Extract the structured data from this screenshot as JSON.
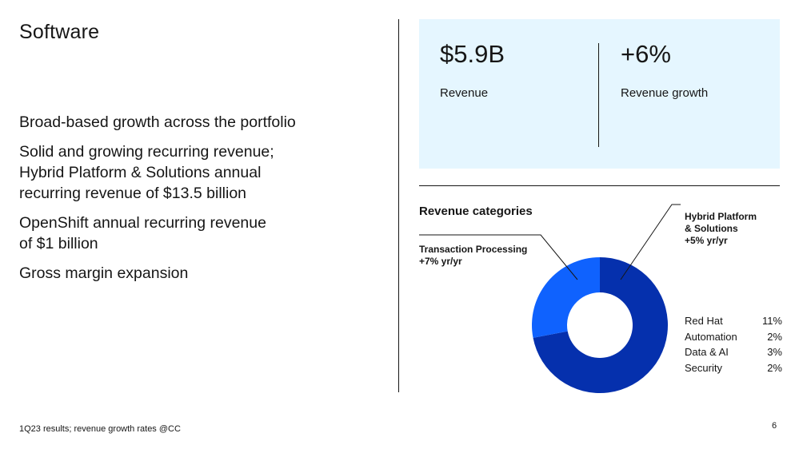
{
  "slide": {
    "title": "Software",
    "bullets": [
      "Broad-based growth across the portfolio",
      "Solid and growing recurring revenue;\nHybrid Platform & Solutions annual\nrecurring revenue of $13.5 billion",
      "OpenShift annual recurring revenue\nof $1 billion",
      "Gross margin expansion"
    ],
    "footnote": "1Q23 results; revenue growth rates @CC",
    "page_number": "6"
  },
  "kpis": [
    {
      "value": "$5.9B",
      "label": "Revenue"
    },
    {
      "value": "+6%",
      "label": "Revenue growth"
    }
  ],
  "revenue_categories": {
    "title": "Revenue categories",
    "callouts": {
      "transaction_processing": "Transaction Processing\n+7% yr/yr",
      "hybrid_platform": "Hybrid Platform\n& Solutions\n+5% yr/yr"
    },
    "legend": [
      {
        "name": "Red Hat",
        "value": "11%"
      },
      {
        "name": "Automation",
        "value": "2%"
      },
      {
        "name": "Data & AI",
        "value": "3%"
      },
      {
        "name": "Security",
        "value": "2%"
      }
    ]
  },
  "chart_data": {
    "type": "pie",
    "variant": "donut",
    "categories": [
      "Hybrid Platform & Solutions",
      "Transaction Processing"
    ],
    "values": [
      0.72,
      0.28
    ],
    "colors": [
      "#0530ad",
      "#0f62fe"
    ]
  }
}
